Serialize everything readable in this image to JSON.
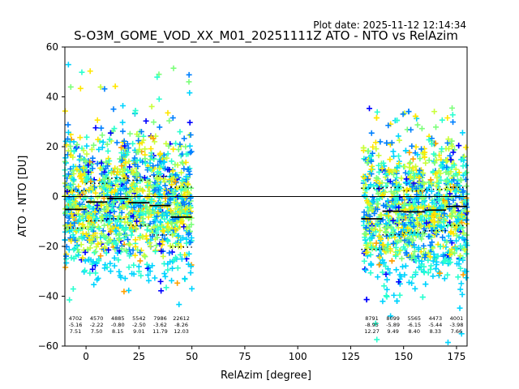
{
  "chart_data": {
    "type": "scatter",
    "plot_date": "Plot date: 2025-11-12 12:14:34",
    "title": "S-O3M_GOME_VOD_XX_M01_20251111Z ATO - NTO vs RelAzim",
    "xlabel": "RelAzim [degree]",
    "ylabel": "ATO - NTO [DU]",
    "xlim": [
      -10,
      180
    ],
    "ylim": [
      -60,
      60
    ],
    "xticks": [
      0,
      25,
      50,
      75,
      100,
      125,
      150,
      175
    ],
    "yticks": [
      -60,
      -40,
      -20,
      0,
      20,
      40,
      60
    ],
    "zero_line": 0,
    "marker": "plus",
    "point_colors": [
      "#0000ff",
      "#0080ff",
      "#00d4ff",
      "#2affd0",
      "#7cff7a",
      "#c8ff3a",
      "#ffe600",
      "#ffa000"
    ],
    "clusters": [
      {
        "x_range": [
          -10,
          50
        ],
        "y_core": [
          -28,
          22
        ],
        "y_outliers": [
          -45,
          53
        ]
      },
      {
        "x_range": [
          131,
          180
        ],
        "y_core": [
          -30,
          20
        ],
        "y_outliers": [
          -60,
          37
        ]
      }
    ],
    "bins": [
      {
        "x": -5,
        "x_range": [
          -10,
          0
        ],
        "count": "4702",
        "mean": -5.16,
        "std": 7.51,
        "mean_label": "-5.16",
        "std_label": "7.51"
      },
      {
        "x": 5,
        "x_range": [
          0,
          10
        ],
        "count": "4570",
        "mean": -2.22,
        "std": 7.5,
        "mean_label": "-2.22",
        "std_label": "7.50"
      },
      {
        "x": 15,
        "x_range": [
          10,
          20
        ],
        "count": "4885",
        "mean": -0.8,
        "std": 8.15,
        "mean_label": "-0.80",
        "std_label": "8.15"
      },
      {
        "x": 25,
        "x_range": [
          20,
          30
        ],
        "count": "5542",
        "mean": -2.5,
        "std": 9.01,
        "mean_label": "-2.50",
        "std_label": "9.01"
      },
      {
        "x": 35,
        "x_range": [
          30,
          40
        ],
        "count": "7986",
        "mean": -3.62,
        "std": 11.79,
        "mean_label": "-3.62",
        "std_label": "11.79"
      },
      {
        "x": 45,
        "x_range": [
          40,
          50
        ],
        "count": "22612",
        "mean": -8.26,
        "std": 12.03,
        "mean_label": "-8.26",
        "std_label": "12.03"
      },
      {
        "x": 135,
        "x_range": [
          130,
          140
        ],
        "count": "8791",
        "mean": -8.95,
        "std": 12.27,
        "mean_label": "-8.95",
        "std_label": "12.27"
      },
      {
        "x": 145,
        "x_range": [
          140,
          150
        ],
        "count": "8099",
        "mean": -5.89,
        "std": 9.49,
        "mean_label": "-5.89",
        "std_label": "9.49"
      },
      {
        "x": 155,
        "x_range": [
          150,
          160
        ],
        "count": "5565",
        "mean": -6.15,
        "std": 8.4,
        "mean_label": "-6.15",
        "std_label": "8.40"
      },
      {
        "x": 165,
        "x_range": [
          160,
          170
        ],
        "count": "4473",
        "mean": -5.44,
        "std": 8.33,
        "mean_label": "-5.44",
        "std_label": "8.33"
      },
      {
        "x": 175,
        "x_range": [
          170,
          180
        ],
        "count": "4001",
        "mean": -3.98,
        "std": 7.66,
        "mean_label": "-3.98",
        "std_label": "7.66"
      }
    ]
  }
}
